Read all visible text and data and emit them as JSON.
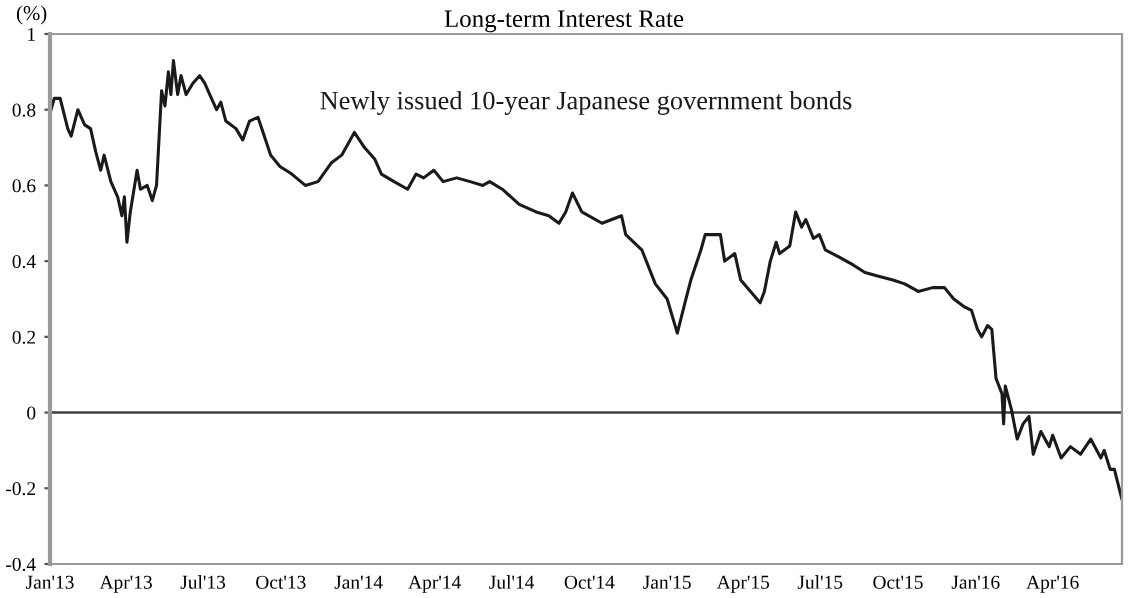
{
  "chart_data": {
    "type": "line",
    "title": "Long-term Interest Rate",
    "ylabel": "(%)",
    "x": [
      "2013-01-01",
      "2013-01-06",
      "2013-01-13",
      "2013-01-22",
      "2013-01-26",
      "2013-02-03",
      "2013-02-11",
      "2013-02-18",
      "2013-02-24",
      "2013-03-02",
      "2013-03-06",
      "2013-03-14",
      "2013-03-22",
      "2013-03-27",
      "2013-03-30",
      "2013-04-02",
      "2013-04-06",
      "2013-04-14",
      "2013-04-18",
      "2013-04-26",
      "2013-05-02",
      "2013-05-07",
      "2013-05-13",
      "2013-05-17",
      "2013-05-21",
      "2013-05-24",
      "2013-05-27",
      "2013-06-01",
      "2013-06-05",
      "2013-06-11",
      "2013-06-19",
      "2013-06-27",
      "2013-07-03",
      "2013-07-09",
      "2013-07-17",
      "2013-07-22",
      "2013-07-28",
      "2013-08-09",
      "2013-08-17",
      "2013-08-25",
      "2013-09-04",
      "2013-09-13",
      "2013-09-19",
      "2013-09-30",
      "2013-10-14",
      "2013-10-30",
      "2013-11-14",
      "2013-11-30",
      "2013-12-12",
      "2013-12-27",
      "2014-01-08",
      "2014-01-20",
      "2014-01-28",
      "2014-02-12",
      "2014-02-28",
      "2014-03-10",
      "2014-03-19",
      "2014-03-31",
      "2014-04-11",
      "2014-04-27",
      "2014-05-13",
      "2014-05-28",
      "2014-06-05",
      "2014-06-20",
      "2014-07-10",
      "2014-07-30",
      "2014-08-14",
      "2014-08-26",
      "2014-09-03",
      "2014-09-11",
      "2014-09-22",
      "2014-10-16",
      "2014-11-08",
      "2014-11-13",
      "2014-12-02",
      "2014-12-18",
      "2015-01-01",
      "2015-01-13",
      "2015-01-22",
      "2015-01-29",
      "2015-02-10",
      "2015-02-15",
      "2015-03-05",
      "2015-03-10",
      "2015-03-22",
      "2015-03-29",
      "2015-04-21",
      "2015-04-26",
      "2015-05-03",
      "2015-05-10",
      "2015-05-14",
      "2015-05-26",
      "2015-06-02",
      "2015-06-09",
      "2015-06-14",
      "2015-06-23",
      "2015-06-30",
      "2015-07-07",
      "2015-07-24",
      "2015-08-09",
      "2015-08-23",
      "2015-09-08",
      "2015-09-25",
      "2015-10-09",
      "2015-10-25",
      "2015-11-11",
      "2015-11-25",
      "2015-12-06",
      "2015-12-18",
      "2015-12-27",
      "2016-01-03",
      "2016-01-08",
      "2016-01-15",
      "2016-01-20",
      "2016-01-25",
      "2016-02-01",
      "2016-02-03",
      "2016-02-05",
      "2016-02-12",
      "2016-02-19",
      "2016-02-26",
      "2016-03-04",
      "2016-03-09",
      "2016-03-18",
      "2016-03-28",
      "2016-04-01",
      "2016-04-11",
      "2016-04-22",
      "2016-05-04",
      "2016-05-16",
      "2016-05-28",
      "2016-06-01",
      "2016-06-08",
      "2016-06-13",
      "2016-06-22"
    ],
    "series": [
      {
        "name": "Newly issued 10-year Japanese government bonds",
        "color": "#1a1a1a",
        "values": [
          0.79,
          0.83,
          0.83,
          0.75,
          0.73,
          0.8,
          0.76,
          0.75,
          0.69,
          0.64,
          0.68,
          0.61,
          0.57,
          0.52,
          0.57,
          0.45,
          0.53,
          0.64,
          0.59,
          0.6,
          0.56,
          0.6,
          0.85,
          0.81,
          0.9,
          0.84,
          0.93,
          0.84,
          0.89,
          0.84,
          0.87,
          0.89,
          0.87,
          0.84,
          0.8,
          0.82,
          0.77,
          0.75,
          0.72,
          0.77,
          0.78,
          0.72,
          0.68,
          0.65,
          0.63,
          0.6,
          0.61,
          0.66,
          0.68,
          0.74,
          0.7,
          0.67,
          0.63,
          0.61,
          0.59,
          0.63,
          0.62,
          0.64,
          0.61,
          0.62,
          0.61,
          0.6,
          0.61,
          0.59,
          0.55,
          0.53,
          0.52,
          0.5,
          0.53,
          0.58,
          0.53,
          0.5,
          0.52,
          0.47,
          0.43,
          0.34,
          0.3,
          0.21,
          0.29,
          0.35,
          0.43,
          0.47,
          0.47,
          0.4,
          0.42,
          0.35,
          0.29,
          0.32,
          0.4,
          0.45,
          0.42,
          0.44,
          0.53,
          0.49,
          0.51,
          0.46,
          0.47,
          0.43,
          0.41,
          0.39,
          0.37,
          0.36,
          0.35,
          0.34,
          0.32,
          0.33,
          0.33,
          0.3,
          0.28,
          0.27,
          0.22,
          0.2,
          0.23,
          0.22,
          0.09,
          0.05,
          -0.03,
          0.07,
          0.01,
          -0.07,
          -0.03,
          -0.01,
          -0.11,
          -0.05,
          -0.09,
          -0.06,
          -0.12,
          -0.09,
          -0.11,
          -0.07,
          -0.12,
          -0.1,
          -0.15,
          -0.15,
          -0.23
        ]
      }
    ],
    "xlim": [
      "2013-01-01",
      "2016-06-22"
    ],
    "xticks": [
      {
        "value": "2013-01-01",
        "label": "Jan'13"
      },
      {
        "value": "2013-04-01",
        "label": "Apr'13"
      },
      {
        "value": "2013-07-01",
        "label": "Jul'13"
      },
      {
        "value": "2013-10-01",
        "label": "Oct'13"
      },
      {
        "value": "2014-01-01",
        "label": "Jan'14"
      },
      {
        "value": "2014-04-01",
        "label": "Apr'14"
      },
      {
        "value": "2014-07-01",
        "label": "Jul'14"
      },
      {
        "value": "2014-10-01",
        "label": "Oct'14"
      },
      {
        "value": "2015-01-01",
        "label": "Jan'15"
      },
      {
        "value": "2015-04-01",
        "label": "Apr'15"
      },
      {
        "value": "2015-07-01",
        "label": "Jul'15"
      },
      {
        "value": "2015-10-01",
        "label": "Oct'15"
      },
      {
        "value": "2016-01-01",
        "label": "Jan'16"
      },
      {
        "value": "2016-04-01",
        "label": "Apr'16"
      }
    ],
    "ylim": [
      -0.4,
      1
    ],
    "yticks": [
      -0.4,
      -0.2,
      0,
      0.2,
      0.4,
      0.6,
      0.8,
      1
    ],
    "ref_lines": [
      {
        "axis": "y",
        "value": 0,
        "color": "#404040"
      }
    ],
    "grid": false,
    "legend": false,
    "marker": "none",
    "line_style": "solid"
  }
}
